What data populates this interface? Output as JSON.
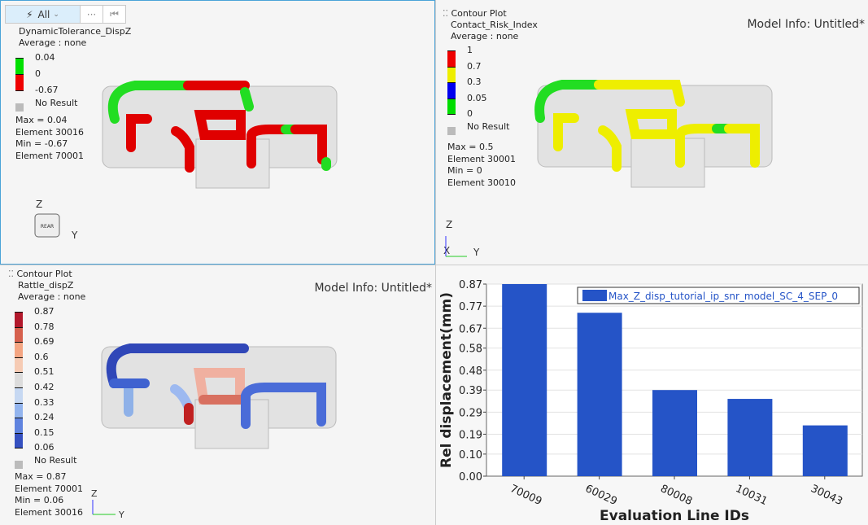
{
  "toolbar": {
    "filter_label": "All",
    "more_label": "···",
    "prev_label": "⏮"
  },
  "panes": [
    {
      "title": "DynamicTolerance_DispZ",
      "average": "Average : none",
      "scale": [
        {
          "v": "0.04",
          "c": "#00e000"
        },
        {
          "v": "0",
          "c": "#ee0000"
        },
        {
          "v": "-0.67",
          "c": null
        }
      ],
      "no_result": "No Result",
      "max": "Max =  0.04",
      "max_el": "Element 30016",
      "min": "Min = -0.67",
      "min_el": "Element 70001",
      "axis_z": "Z",
      "axis_y": "Y",
      "view_cube": "REAR"
    },
    {
      "header": "Contour Plot",
      "title": "Contact_Risk_Index",
      "average": "Average : none",
      "model_info": "Model Info: Untitled*",
      "scale": [
        {
          "v": "1",
          "c": "#ee0000"
        },
        {
          "v": "0.7",
          "c": "#eeee00"
        },
        {
          "v": "0.3",
          "c": "#0000ee"
        },
        {
          "v": "0.05",
          "c": "#00dd00"
        },
        {
          "v": "0",
          "c": null
        }
      ],
      "no_result": "No Result",
      "max": "Max =  0.5",
      "max_el": "Element 30001",
      "min": "Min =  0",
      "min_el": "Element 30010",
      "axis_z": "Z",
      "axis_x": "X",
      "axis_y": "Y"
    },
    {
      "header": "Contour Plot",
      "title": "Rattle_dispZ",
      "average": "Average : none",
      "model_info": "Model Info: Untitled*",
      "scale": [
        {
          "v": "0.87",
          "c": "#b2182b"
        },
        {
          "v": "0.78",
          "c": "#d6604d"
        },
        {
          "v": "0.69",
          "c": "#f4a582"
        },
        {
          "v": "0.6",
          "c": "#f6cbb4"
        },
        {
          "v": "0.51",
          "c": "#dcdcdc"
        },
        {
          "v": "0.42",
          "c": "#c6d8f2"
        },
        {
          "v": "0.33",
          "c": "#92b4ee"
        },
        {
          "v": "0.24",
          "c": "#5f83df"
        },
        {
          "v": "0.15",
          "c": "#3550c0"
        },
        {
          "v": "0.06",
          "c": null
        }
      ],
      "no_result": "No Result",
      "max": "Max =  0.87",
      "max_el": "Element 70001",
      "min": "Min =  0.06",
      "min_el": "Element 30016",
      "axis_z": "Z",
      "axis_y": "Y"
    }
  ],
  "chart_data": {
    "type": "bar",
    "categories": [
      "70009",
      "60029",
      "80008",
      "10031",
      "30043"
    ],
    "values": [
      0.87,
      0.74,
      0.39,
      0.35,
      0.23
    ],
    "series_name": "Max_Z_disp_tutorial_ip_snr_model_SC_4_SEP_0",
    "xlabel": "Evaluation Line IDs",
    "ylabel": "Rel displacement(mm)",
    "yticks": [
      "0.00",
      "0.10",
      "0.19",
      "0.29",
      "0.39",
      "0.48",
      "0.58",
      "0.67",
      "0.77",
      "0.87"
    ],
    "ylim": [
      0,
      0.87
    ],
    "bar_color": "#2554c7",
    "grid": true,
    "legend": "top-right"
  }
}
